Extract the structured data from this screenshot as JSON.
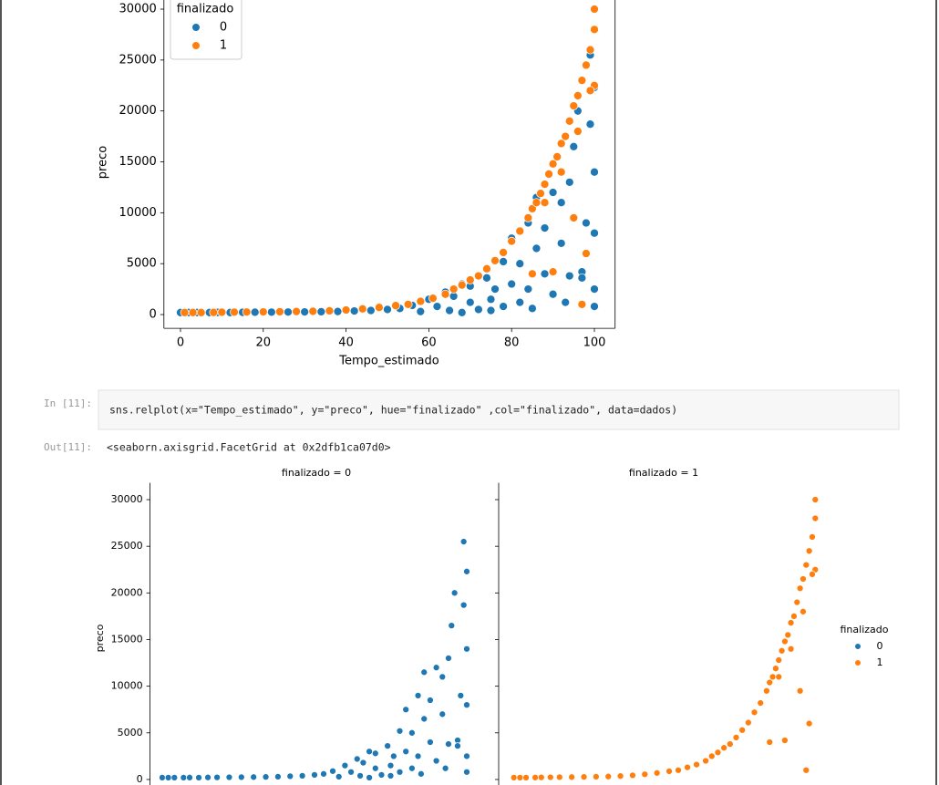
{
  "chart_data": [
    {
      "type": "scatter",
      "xlabel": "Tempo_estimado",
      "ylabel": "preco",
      "xlim": [
        -4,
        105
      ],
      "ylim": [
        -1350,
        31300
      ],
      "xticks": [
        0,
        20,
        40,
        60,
        80,
        100
      ],
      "yticks": [
        0,
        5000,
        10000,
        15000,
        20000,
        25000,
        30000
      ],
      "legend": {
        "title": "finalizado",
        "position": "upper left"
      },
      "series": [
        {
          "name": "0",
          "color": "#1f77b4",
          "x": [
            0,
            2,
            4,
            7,
            9,
            12,
            15,
            18,
            22,
            26,
            30,
            34,
            38,
            42,
            46,
            50,
            53,
            56,
            58,
            60,
            62,
            64,
            65,
            66,
            68,
            70,
            70,
            72,
            74,
            75,
            76,
            78,
            78,
            80,
            80,
            82,
            82,
            84,
            84,
            86,
            86,
            88,
            88,
            90,
            90,
            92,
            92,
            94,
            94,
            95,
            96,
            97,
            98,
            99,
            99,
            100,
            100,
            100,
            100,
            100,
            75,
            68,
            85,
            93,
            97
          ],
          "y": [
            200,
            200,
            200,
            200,
            210,
            200,
            220,
            230,
            240,
            250,
            260,
            280,
            300,
            350,
            400,
            500,
            600,
            900,
            300,
            1500,
            800,
            2200,
            400,
            1800,
            3000,
            1200,
            2800,
            500,
            3600,
            1500,
            2500,
            800,
            5200,
            3000,
            7500,
            1200,
            5000,
            9000,
            2500,
            6500,
            11500,
            4000,
            8500,
            12000,
            2000,
            7000,
            11000,
            3800,
            13000,
            16500,
            20000,
            4200,
            9000,
            25500,
            18700,
            8000,
            22300,
            14000,
            2500,
            800,
            400,
            200,
            600,
            1200,
            3600
          ]
        },
        {
          "name": "1",
          "color": "#ff7f0e",
          "x": [
            1,
            3,
            5,
            8,
            10,
            13,
            16,
            20,
            24,
            28,
            32,
            36,
            40,
            44,
            48,
            52,
            55,
            58,
            61,
            64,
            66,
            68,
            70,
            72,
            74,
            76,
            78,
            80,
            82,
            84,
            85,
            86,
            87,
            88,
            89,
            90,
            91,
            92,
            93,
            94,
            95,
            96,
            97,
            98,
            99,
            100,
            100,
            100,
            95,
            98,
            97,
            90,
            85,
            99,
            96,
            92,
            88
          ],
          "y": [
            200,
            200,
            200,
            210,
            230,
            240,
            250,
            260,
            280,
            300,
            320,
            370,
            450,
            560,
            700,
            880,
            1000,
            1300,
            1600,
            2000,
            2500,
            2900,
            3400,
            3800,
            4500,
            5300,
            6100,
            7200,
            8200,
            9500,
            10400,
            11000,
            11900,
            12800,
            13800,
            14800,
            15500,
            16800,
            17500,
            19000,
            20500,
            21500,
            23000,
            24500,
            26000,
            28000,
            30000,
            22500,
            9500,
            6000,
            1000,
            4200,
            4000,
            22000,
            18000,
            14000,
            11000
          ]
        }
      ]
    },
    {
      "type": "scatter",
      "title": "finalizado = 0",
      "ylabel": "preco",
      "xlim": [
        -4,
        105
      ],
      "ylim": [
        -1500,
        31800
      ],
      "yticks": [
        0,
        5000,
        10000,
        15000,
        20000,
        25000,
        30000
      ],
      "series": [
        {
          "name": "0",
          "color": "#1f77b4",
          "x": [
            0,
            2,
            4,
            7,
            9,
            12,
            15,
            18,
            22,
            26,
            30,
            34,
            38,
            42,
            46,
            50,
            53,
            56,
            58,
            60,
            62,
            64,
            65,
            66,
            68,
            70,
            70,
            72,
            74,
            75,
            76,
            78,
            78,
            80,
            80,
            82,
            82,
            84,
            84,
            86,
            86,
            88,
            88,
            90,
            90,
            92,
            92,
            94,
            94,
            95,
            96,
            97,
            98,
            99,
            99,
            100,
            100,
            100,
            100,
            100,
            75,
            68,
            85,
            93,
            97
          ],
          "y": [
            200,
            200,
            200,
            200,
            210,
            200,
            220,
            230,
            240,
            250,
            260,
            280,
            300,
            350,
            400,
            500,
            600,
            900,
            300,
            1500,
            800,
            2200,
            400,
            1800,
            3000,
            1200,
            2800,
            500,
            3600,
            1500,
            2500,
            800,
            5200,
            3000,
            7500,
            1200,
            5000,
            9000,
            2500,
            6500,
            11500,
            4000,
            8500,
            12000,
            2000,
            7000,
            11000,
            3800,
            13000,
            16500,
            20000,
            4200,
            9000,
            25500,
            18700,
            8000,
            22300,
            14000,
            2500,
            800,
            400,
            200,
            600,
            1200,
            3600
          ]
        }
      ]
    },
    {
      "type": "scatter",
      "title": "finalizado = 1",
      "xlim": [
        -4,
        105
      ],
      "ylim": [
        -1500,
        31800
      ],
      "yticks": [
        0,
        5000,
        10000,
        15000,
        20000,
        25000,
        30000
      ],
      "series": [
        {
          "name": "1",
          "color": "#ff7f0e",
          "x": [
            1,
            3,
            5,
            8,
            10,
            13,
            16,
            20,
            24,
            28,
            32,
            36,
            40,
            44,
            48,
            52,
            55,
            58,
            61,
            64,
            66,
            68,
            70,
            72,
            74,
            76,
            78,
            80,
            82,
            84,
            85,
            86,
            87,
            88,
            89,
            90,
            91,
            92,
            93,
            94,
            95,
            96,
            97,
            98,
            99,
            100,
            100,
            100,
            95,
            98,
            97,
            90,
            85,
            99,
            96,
            92,
            88
          ],
          "y": [
            200,
            200,
            200,
            210,
            230,
            240,
            250,
            260,
            280,
            300,
            320,
            370,
            450,
            560,
            700,
            880,
            1000,
            1300,
            1600,
            2000,
            2500,
            2900,
            3400,
            3800,
            4500,
            5300,
            6100,
            7200,
            8200,
            9500,
            10400,
            11000,
            11900,
            12800,
            13800,
            14800,
            15500,
            16800,
            17500,
            19000,
            20500,
            21500,
            23000,
            24500,
            26000,
            28000,
            30000,
            22500,
            9500,
            6000,
            1000,
            4200,
            4000,
            22000,
            18000,
            14000,
            11000
          ]
        }
      ]
    }
  ],
  "notebook": {
    "in_prompt": "In [11]:",
    "code": "sns.relplot(x=\"Tempo_estimado\", y=\"preco\", hue=\"finalizado\" ,col=\"finalizado\", data=dados)",
    "out_prompt": "Out[11]:",
    "output": "<seaborn.axisgrid.FacetGrid at 0x2dfb1ca07d0>",
    "facet_legend": {
      "title": "finalizado",
      "entries": [
        {
          "name": "0",
          "color": "#1f77b4"
        },
        {
          "name": "1",
          "color": "#ff7f0e"
        }
      ]
    }
  }
}
